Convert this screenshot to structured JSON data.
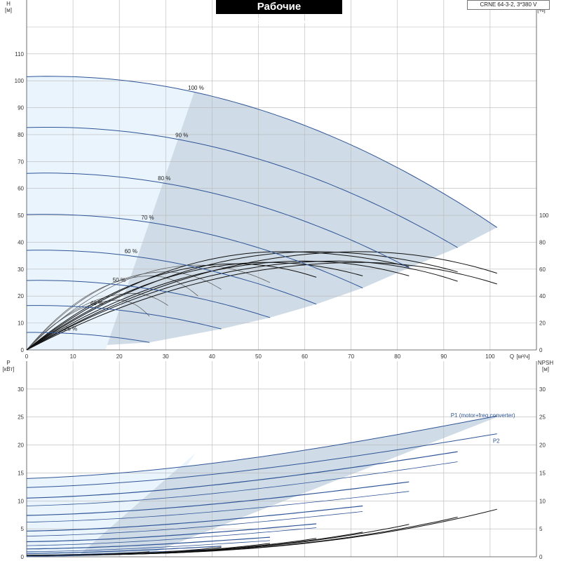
{
  "title": "Рабочие характеристики",
  "model": "CRNE 64-3-2, 3*380 V",
  "colors": {
    "envelope_fill": "#cfdbe6",
    "sweet_fill": "#eaf4fc",
    "curve_blue": "#2f5597",
    "curve_black": "#111111",
    "grid": "#b8b8b8"
  },
  "chart_data": [
    {
      "type": "line",
      "title": "Рабочие характеристики",
      "x_axis": {
        "label": "Q",
        "unit": "[м³/ч]",
        "range": [
          0,
          110
        ],
        "ticks": [
          0,
          10,
          20,
          30,
          40,
          50,
          60,
          70,
          80,
          90,
          100
        ]
      },
      "y_axis_left": {
        "label": "H",
        "unit": "[м]",
        "range": [
          0,
          120
        ],
        "ticks": [
          0,
          10,
          20,
          30,
          40,
          50,
          60,
          70,
          80,
          90,
          100,
          110
        ]
      },
      "y_axis_right": {
        "label": "eta",
        "unit": "[%]",
        "range": [
          0,
          240
        ],
        "ticks": [
          0,
          20,
          40,
          60,
          80,
          100
        ]
      },
      "grid": true,
      "head_curves": [
        {
          "name": "100 %",
          "shutoff": 101.5,
          "qmax": 101.5,
          "hend": 45.5
        },
        {
          "name": "90 %",
          "shutoff": 82.6,
          "qmax": 93.0,
          "hend": 38.0
        },
        {
          "name": "80 %",
          "shutoff": 65.6,
          "qmax": 82.5,
          "hend": 30.5
        },
        {
          "name": "70 %",
          "shutoff": 50.3,
          "qmax": 72.5,
          "hend": 23.0
        },
        {
          "name": "60 %",
          "shutoff": 37.0,
          "qmax": 62.5,
          "hend": 17.0
        },
        {
          "name": "50 %",
          "shutoff": 25.8,
          "qmax": 52.5,
          "hend": 12.0
        },
        {
          "name": "40 %",
          "shutoff": 16.5,
          "qmax": 42.0,
          "hend": 7.8
        },
        {
          "name": "25 %",
          "shutoff": 6.5,
          "qmax": 26.5,
          "hend": 2.8
        }
      ],
      "efficiency_curves": [
        {
          "qpeak": 20,
          "qend": 26.5,
          "peak": 37,
          "end": 25
        },
        {
          "qpeak": 23,
          "qend": 30.5,
          "peak": 42,
          "end": 33
        },
        {
          "qpeak": 27,
          "qend": 37,
          "peak": 55,
          "end": 40
        },
        {
          "qpeak": 30,
          "qend": 42,
          "peak": 58,
          "end": 45
        },
        {
          "qpeak": 37,
          "qend": 52.5,
          "peak": 63,
          "end": 50
        },
        {
          "qpeak": 45,
          "qend": 62.5,
          "peak": 64,
          "end": 54
        },
        {
          "qpeak": 52,
          "qend": 72.5,
          "peak": 65,
          "end": 55
        },
        {
          "qpeak": 60,
          "qend": 82.5,
          "peak": 66,
          "end": 55
        },
        {
          "qpeak": 67,
          "qend": 93,
          "peak": 66,
          "end": 51
        },
        {
          "qpeak": 72,
          "qend": 101.5,
          "peak": 65,
          "end": 49
        },
        {
          "qpeak": 72,
          "qend": 101.5,
          "peak": 73,
          "end": 57
        },
        {
          "qpeak": 62,
          "qend": 93,
          "peak": 73,
          "end": 58
        },
        {
          "qpeak": 55,
          "qend": 82.5,
          "peak": 73,
          "end": 62
        }
      ]
    },
    {
      "type": "line",
      "x_axis": {
        "label": "Q",
        "unit": "[м³/ч]",
        "range": [
          0,
          110
        ],
        "ticks": [
          0,
          10,
          20,
          30,
          40,
          50,
          60,
          70,
          80,
          90,
          100
        ]
      },
      "y_axis_left": {
        "label": "P",
        "unit": "[кВт]",
        "range": [
          0,
          30
        ],
        "ticks": [
          0,
          5,
          10,
          15,
          20,
          25,
          30
        ]
      },
      "y_axis_right": {
        "label": "NPSH",
        "unit": "[м]",
        "range": [
          0,
          30
        ],
        "ticks": [
          0,
          5,
          10,
          15,
          20,
          25,
          30
        ]
      },
      "grid": true,
      "series": [
        {
          "name": "P1 (motor+freq.converter)",
          "start": 14.0,
          "qmax": 101.5,
          "end": 25.2
        },
        {
          "name": "P2",
          "start": 12.4,
          "qmax": 101.5,
          "end": 22.0
        }
      ],
      "power_curves": [
        {
          "start": 10.5,
          "qmax": 93.0,
          "end": 18.8
        },
        {
          "start": 9.1,
          "qmax": 93.0,
          "end": 17.0
        },
        {
          "start": 7.4,
          "qmax": 82.5,
          "end": 13.4
        },
        {
          "start": 6.2,
          "qmax": 82.5,
          "end": 11.7
        },
        {
          "start": 4.6,
          "qmax": 72.5,
          "end": 9.1
        },
        {
          "start": 3.7,
          "qmax": 72.5,
          "end": 8.1
        },
        {
          "start": 2.7,
          "qmax": 62.5,
          "end": 5.9
        },
        {
          "start": 2.0,
          "qmax": 62.5,
          "end": 5.2
        },
        {
          "start": 1.4,
          "qmax": 52.5,
          "end": 3.5
        },
        {
          "start": 0.9,
          "qmax": 52.5,
          "end": 2.9
        },
        {
          "start": 0.6,
          "qmax": 42.0,
          "end": 1.9
        },
        {
          "start": 0.3,
          "qmax": 42.0,
          "end": 1.4
        },
        {
          "start": 0.1,
          "qmax": 26.5,
          "end": 0.6
        }
      ],
      "npsh_curves": [
        {
          "qmax": 101.5,
          "end": 8.5
        },
        {
          "qmax": 93.0,
          "end": 7.1
        },
        {
          "qmax": 82.5,
          "end": 5.8
        },
        {
          "qmax": 72.5,
          "end": 4.4
        },
        {
          "qmax": 62.5,
          "end": 3.3
        },
        {
          "qmax": 52.5,
          "end": 2.4
        },
        {
          "qmax": 42.0,
          "end": 1.7
        },
        {
          "qmax": 26.5,
          "end": 0.9
        }
      ]
    }
  ]
}
